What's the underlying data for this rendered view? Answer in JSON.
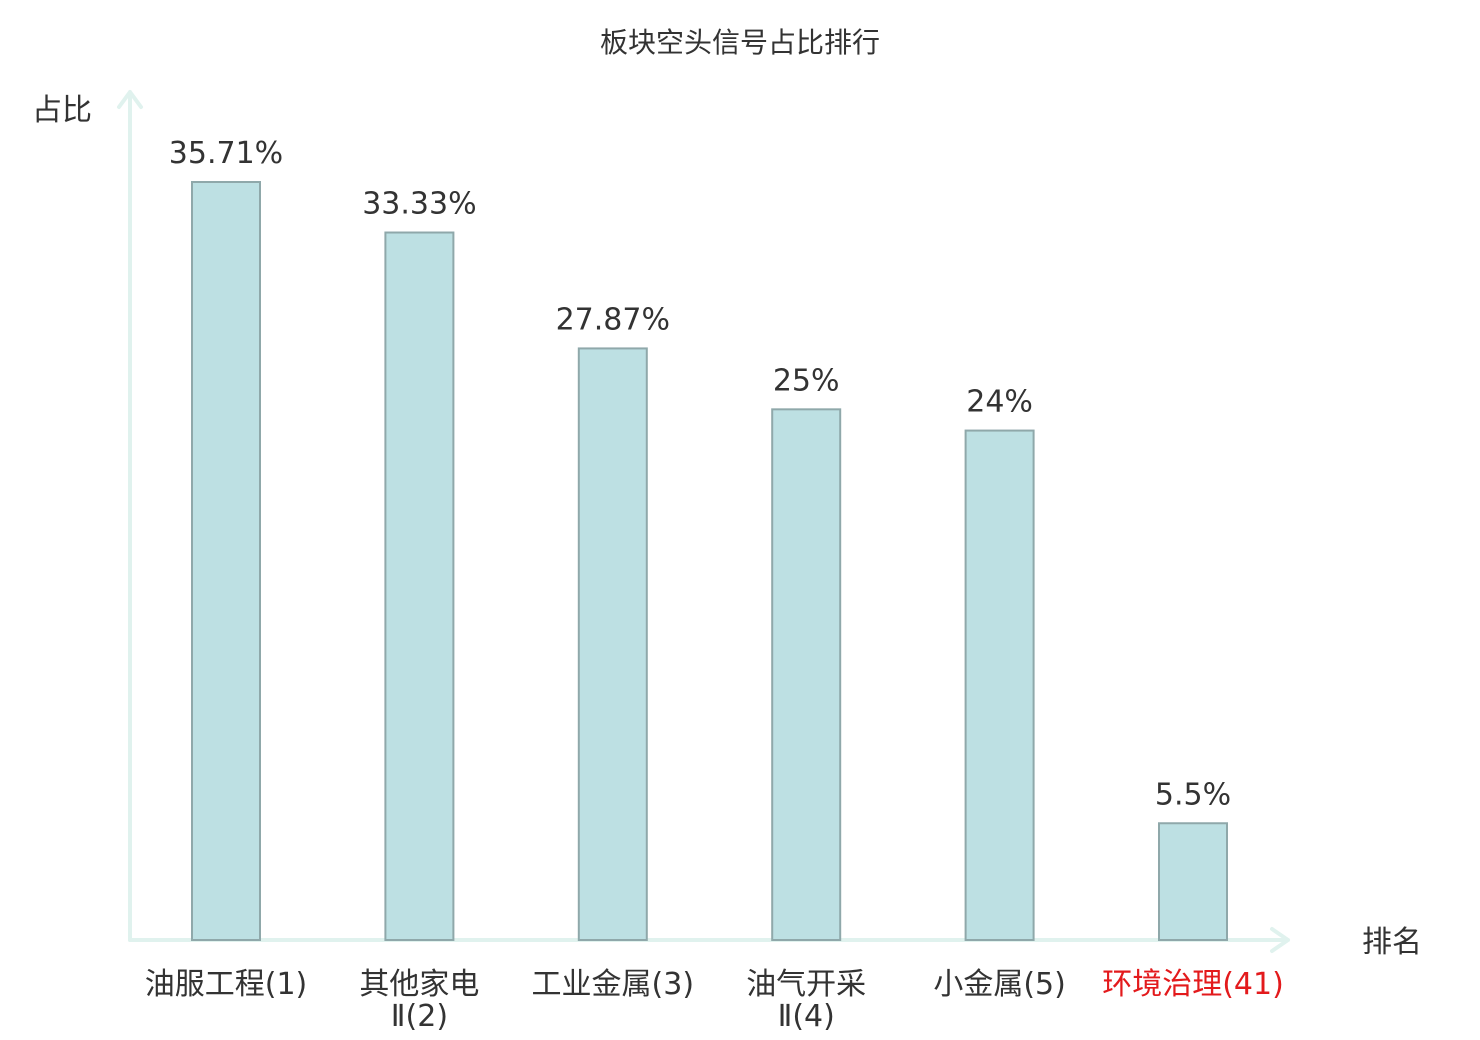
{
  "chart_data": {
    "type": "bar",
    "title": "板块空头信号占比排行",
    "ylabel": "占比",
    "xlabel": "排名",
    "ylim": [
      0,
      40
    ],
    "categories": [
      {
        "name": "油服工程",
        "rank": "(1)",
        "highlight": false
      },
      {
        "name": "其他家电",
        "suffix": "Ⅱ",
        "rank": "(2)",
        "highlight": false
      },
      {
        "name": "工业金属",
        "rank": "(3)",
        "highlight": false
      },
      {
        "name": "油气开采",
        "suffix": "Ⅱ",
        "rank": "(4)",
        "highlight": false
      },
      {
        "name": "小金属",
        "rank": "(5)",
        "highlight": false
      },
      {
        "name": "环境治理",
        "rank": "(41)",
        "highlight": true
      }
    ],
    "values": [
      35.71,
      33.33,
      27.87,
      25,
      24,
      5.5
    ],
    "value_labels": [
      "35.71%",
      "33.33%",
      "27.87%",
      "25%",
      "24%",
      "5.5%"
    ],
    "grid": false,
    "legend": "none",
    "colors": {
      "bar": "#bde0e3",
      "bar_edge": "#8fa8aa",
      "axis": "#e0f2ee",
      "highlight": "#e31a1c",
      "text": "#333333"
    }
  }
}
